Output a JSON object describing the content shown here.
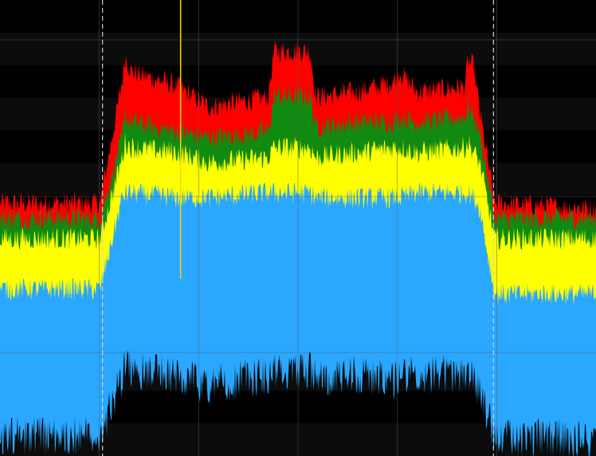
{
  "display": {
    "background_color": "#000000",
    "band_color": "#0c0c0c",
    "grid_color": "#5a5a5a",
    "marker_color": "#cfcfcf",
    "spike_color": "#ffd400"
  },
  "chart_data": {
    "type": "area",
    "title": "",
    "xlabel": "",
    "ylabel": "",
    "grid": true,
    "legend": "none",
    "xlim": [
      0,
      100
    ],
    "ylim": [
      -100,
      -10
    ],
    "x_divisions": 6,
    "y_divisions": 7,
    "markers": [
      {
        "name": "",
        "x": 17.2
      },
      {
        "name": "",
        "x": 82.8
      }
    ],
    "spurs": [
      {
        "x": 30.3,
        "peak": -10
      }
    ],
    "x": [
      0,
      16.8,
      20.5,
      21.0,
      22.0,
      30.0,
      35.0,
      45.0,
      46.0,
      52.0,
      53.0,
      60.0,
      66.0,
      67.0,
      70.0,
      78.0,
      78.5,
      79.5,
      80.5,
      83.0,
      100
    ],
    "series": [
      {
        "name": "",
        "color": "#ff0000",
        "values": [
          -51,
          -51,
          -27,
          -22,
          -25,
          -28,
          -32,
          -30,
          -21,
          -21,
          -30,
          -29,
          -27,
          -25,
          -29,
          -28,
          -23,
          -24,
          -33,
          -51,
          -52
        ]
      },
      {
        "name": "",
        "color": "#118a11",
        "values": [
          -54,
          -54,
          -38,
          -34,
          -35,
          -37,
          -38,
          -37,
          -30,
          -30,
          -36,
          -35,
          -35,
          -34,
          -35,
          -34,
          -32,
          -34,
          -37,
          -54,
          -54
        ]
      },
      {
        "name": "",
        "color": "#ffff00",
        "values": [
          -58,
          -58,
          -42,
          -39,
          -40,
          -41,
          -43,
          -42,
          -40,
          -40,
          -42,
          -41,
          -40,
          -40,
          -41,
          -40,
          -39,
          -41,
          -43,
          -58,
          -58
        ]
      },
      {
        "name": "",
        "color": "#2aa7ff",
        "values": [
          -68,
          -68,
          -50,
          -49,
          -49,
          -50,
          -50,
          -49,
          -49,
          -49,
          -50,
          -50,
          -50,
          -50,
          -49,
          -49,
          -49,
          -50,
          -52,
          -69,
          -69
        ]
      }
    ],
    "noise_floor": [
      {
        "name": "",
        "color": "#2aa7ff",
        "values": [
          -92,
          -92,
          -80,
          -78,
          -79,
          -80,
          -82,
          -80,
          -79,
          -79,
          -81,
          -80,
          -81,
          -80,
          -80,
          -80,
          -80,
          -81,
          -83,
          -92,
          -93
        ]
      }
    ]
  }
}
